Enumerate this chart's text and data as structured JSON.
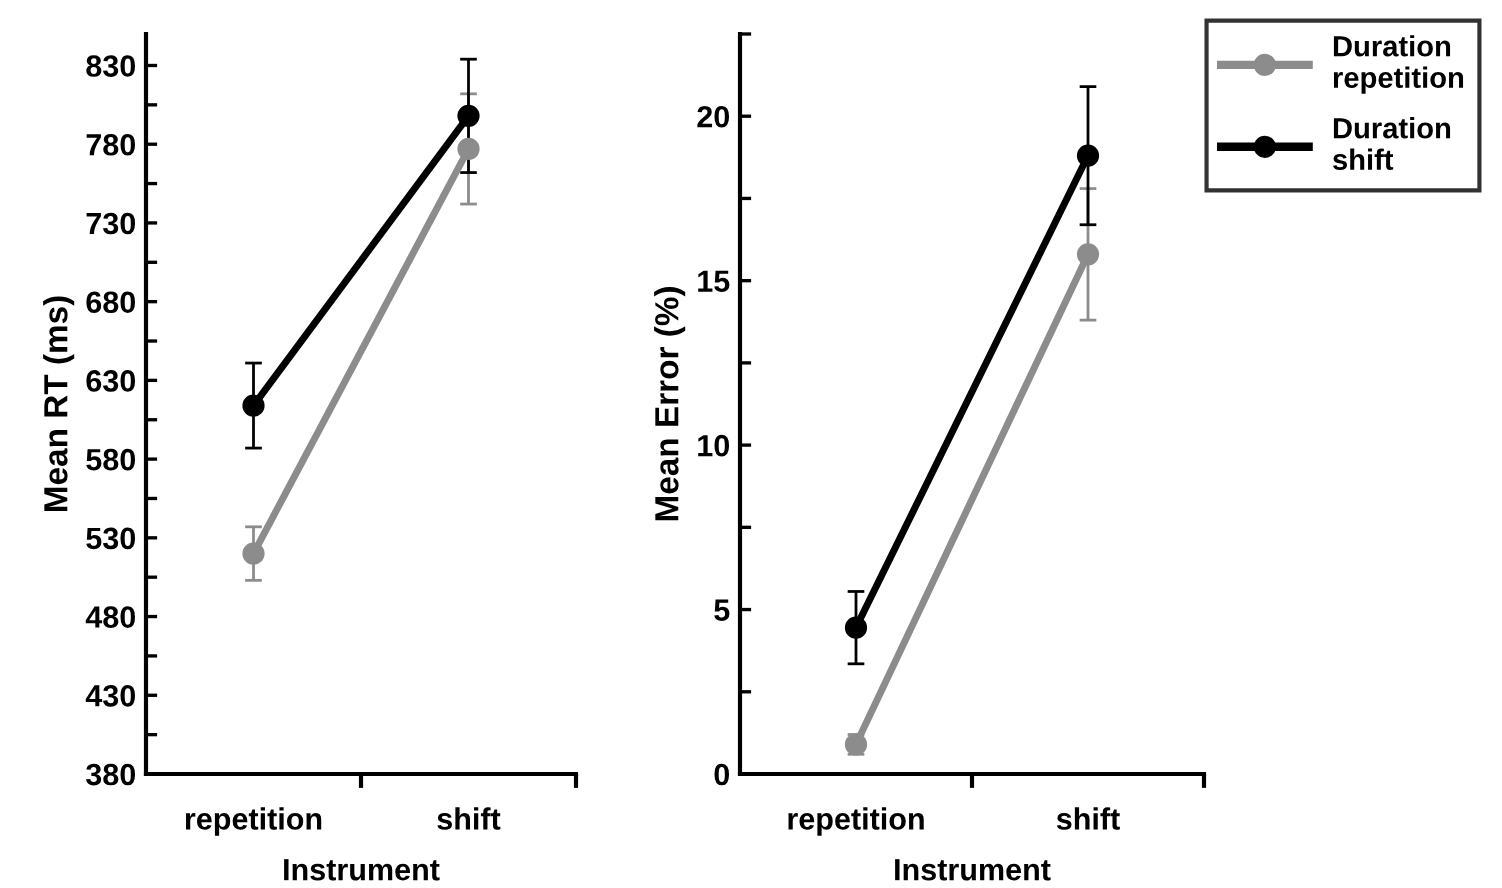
{
  "chart_data": [
    {
      "type": "line",
      "xlabel": "Instrument",
      "ylabel": "Mean RT (ms)",
      "categories": [
        "repetition",
        "shift"
      ],
      "series": [
        {
          "color": "#8c8c8c",
          "values": [
            520,
            777
          ],
          "errors": [
            17,
            35
          ]
        },
        {
          "color": "#000000",
          "values": [
            614,
            798
          ],
          "errors": [
            27,
            36
          ]
        }
      ],
      "ylim": [
        380,
        850
      ],
      "yticks": [
        380,
        {
          "value": 405,
          "label": null
        },
        430,
        {
          "value": 455,
          "label": null
        },
        480,
        {
          "value": 505,
          "label": null
        },
        530,
        {
          "value": 555,
          "label": null
        },
        580,
        {
          "value": 605,
          "label": null
        },
        630,
        {
          "value": 655,
          "label": null
        },
        680,
        {
          "value": 705,
          "label": null
        },
        730,
        {
          "value": 755,
          "label": null
        },
        780,
        {
          "value": 805,
          "label": null
        },
        830
      ],
      "marker": "circle",
      "line_style": "solid",
      "grid": false,
      "legend": false
    },
    {
      "type": "line",
      "xlabel": "Instrument",
      "ylabel": "Mean Error (%)",
      "categories": [
        "repetition",
        "shift"
      ],
      "series": [
        {
          "name": "Duration repetition",
          "color": "#8c8c8c",
          "values": [
            0.9,
            15.8
          ],
          "errors": [
            0.3,
            2.0
          ]
        },
        {
          "name": "Duration shift",
          "color": "#000000",
          "values": [
            4.45,
            18.8
          ],
          "errors": [
            1.1,
            2.1
          ]
        }
      ],
      "ylim": [
        0,
        22.5
      ],
      "yticks": [
        0,
        {
          "value": 2.5,
          "label": null
        },
        5,
        {
          "value": 7.5,
          "label": null
        },
        10,
        {
          "value": 12.5,
          "label": null
        },
        15,
        {
          "value": 17.5,
          "label": null
        },
        20,
        {
          "value": 22.5,
          "label": null
        }
      ],
      "marker": "circle",
      "line_style": "solid",
      "grid": false,
      "legend": "top right"
    }
  ]
}
